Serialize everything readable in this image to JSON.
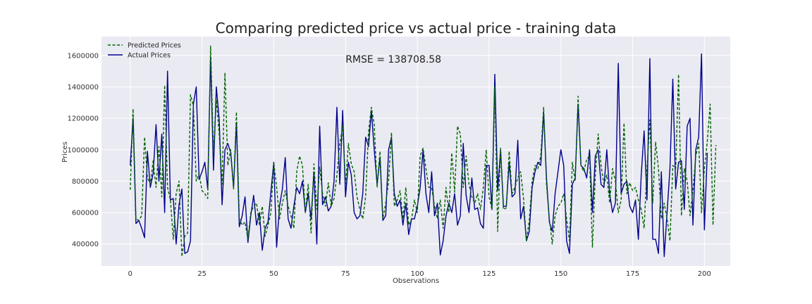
{
  "chart_data": {
    "type": "line",
    "title": "Comparing predicted price vs actual price - training data",
    "xlabel": "Observations",
    "ylabel": "Prices",
    "xlim": [
      -10,
      209
    ],
    "ylim": [
      260000,
      1720000
    ],
    "xticks": [
      0,
      25,
      50,
      75,
      100,
      125,
      150,
      175,
      200
    ],
    "yticks": [
      400000,
      600000,
      800000,
      1000000,
      1200000,
      1400000,
      1600000
    ],
    "grid": true,
    "legend_position": "top-left",
    "annotation": "RMSE = 138708.58",
    "annotation_x": 75,
    "annotation_y": 1555000,
    "colors": {
      "background": "#eaeaf2",
      "grid": "#ffffff",
      "predicted": "#006400",
      "actual": "#00008b"
    },
    "series": [
      {
        "name": "Predicted Prices",
        "style": "dashed",
        "values": [
          745000,
          1260000,
          560000,
          550000,
          580000,
          1080000,
          820000,
          780000,
          930000,
          760000,
          1020000,
          700000,
          1410000,
          760000,
          680000,
          430000,
          720000,
          800000,
          320000,
          450000,
          470000,
          1350000,
          1280000,
          800000,
          850000,
          740000,
          720000,
          690000,
          1660000,
          980000,
          1320000,
          1100000,
          780000,
          1490000,
          900000,
          1000000,
          750000,
          1240000,
          560000,
          520000,
          540000,
          430000,
          600000,
          640000,
          660000,
          520000,
          640000,
          450000,
          520000,
          600000,
          920000,
          760000,
          560000,
          660000,
          740000,
          640000,
          580000,
          500000,
          860000,
          960000,
          900000,
          600000,
          780000,
          470000,
          910000,
          620000,
          890000,
          720000,
          640000,
          790000,
          640000,
          690000,
          840000,
          1040000,
          1150000,
          780000,
          1040000,
          910000,
          860000,
          700000,
          620000,
          560000,
          700000,
          1110000,
          1270000,
          1160000,
          760000,
          990000,
          560000,
          660000,
          800000,
          1110000,
          640000,
          680000,
          740000,
          560000,
          760000,
          520000,
          560000,
          680000,
          600000,
          960000,
          1010000,
          880000,
          760000,
          760000,
          640000,
          560000,
          680000,
          500000,
          760000,
          600000,
          980000,
          730000,
          1150000,
          1100000,
          760000,
          960000,
          780000,
          700000,
          660000,
          720000,
          620000,
          760000,
          1000000,
          700000,
          620000,
          1400000,
          480000,
          1010000,
          620000,
          630000,
          990000,
          720000,
          760000,
          820000,
          860000,
          690000,
          420000,
          550000,
          800000,
          900000,
          880000,
          960000,
          1270000,
          780000,
          560000,
          400000,
          580000,
          640000,
          660000,
          720000,
          560000,
          420000,
          920000,
          800000,
          1340000,
          900000,
          860000,
          940000,
          960000,
          380000,
          840000,
          1100000,
          900000,
          780000,
          840000,
          660000,
          880000,
          800000,
          600000,
          680000,
          1170000,
          720000,
          790000,
          740000,
          760000,
          680000,
          620000,
          500000,
          880000,
          1190000,
          660000,
          1050000,
          880000,
          560000,
          660000,
          560000,
          420000,
          900000,
          880000,
          1480000,
          580000,
          880000,
          800000,
          580000,
          740000,
          960000,
          1040000,
          600000,
          880000,
          1050000,
          1290000,
          520000,
          1030000
        ]
      },
      {
        "name": "Actual Prices",
        "style": "solid",
        "values": [
          900000,
          1200000,
          530000,
          550000,
          500000,
          440000,
          990000,
          760000,
          850000,
          1160000,
          800000,
          1100000,
          600000,
          1500000,
          680000,
          690000,
          400000,
          650000,
          750000,
          340000,
          350000,
          420000,
          1290000,
          1400000,
          810000,
          860000,
          920000,
          750000,
          1590000,
          870000,
          1400000,
          1190000,
          650000,
          1000000,
          1040000,
          980000,
          760000,
          1170000,
          510000,
          580000,
          700000,
          410000,
          580000,
          710000,
          520000,
          600000,
          360000,
          500000,
          540000,
          730000,
          920000,
          380000,
          640000,
          750000,
          950000,
          560000,
          500000,
          640000,
          760000,
          720000,
          800000,
          600000,
          720000,
          560000,
          860000,
          400000,
          1150000,
          650000,
          700000,
          610000,
          640000,
          800000,
          1270000,
          780000,
          1250000,
          700000,
          920000,
          840000,
          600000,
          560000,
          580000,
          720000,
          1080000,
          1020000,
          1250000,
          1000000,
          780000,
          950000,
          550000,
          580000,
          1000000,
          1080000,
          720000,
          640000,
          680000,
          520000,
          660000,
          460000,
          560000,
          560000,
          640000,
          760000,
          1000000,
          720000,
          600000,
          860000,
          580000,
          660000,
          330000,
          420000,
          580000,
          660000,
          600000,
          720000,
          520000,
          580000,
          1040000,
          710000,
          600000,
          820000,
          620000,
          630000,
          530000,
          500000,
          900000,
          900000,
          620000,
          1480000,
          740000,
          1000000,
          640000,
          640000,
          920000,
          700000,
          720000,
          1060000,
          560000,
          640000,
          420000,
          480000,
          760000,
          860000,
          920000,
          900000,
          1240000,
          820000,
          540000,
          480000,
          720000,
          860000,
          1000000,
          900000,
          420000,
          340000,
          780000,
          820000,
          1290000,
          900000,
          880000,
          820000,
          1000000,
          600000,
          960000,
          1000000,
          780000,
          760000,
          1000000,
          720000,
          600000,
          660000,
          1550000,
          720000,
          780000,
          800000,
          640000,
          600000,
          680000,
          430000,
          840000,
          1120000,
          680000,
          1580000,
          430000,
          430000,
          340000,
          860000,
          320000,
          600000,
          880000,
          1450000,
          750000,
          920000,
          930000,
          620000,
          1150000,
          1200000,
          520000,
          1000000,
          1080000,
          1610000,
          490000,
          980000
        ]
      }
    ]
  }
}
